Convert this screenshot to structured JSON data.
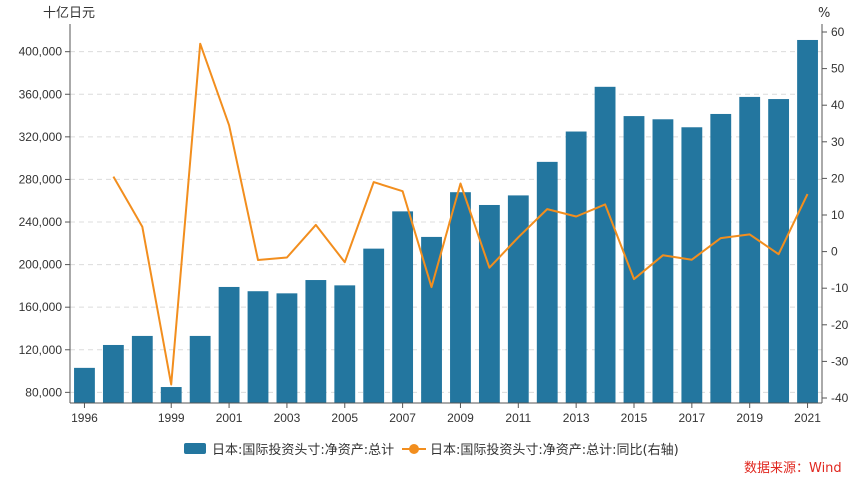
{
  "chart_data": {
    "type": "bar",
    "units": {
      "left": "十亿日元",
      "right": "%"
    },
    "categories": [
      "1996",
      "1997",
      "1998",
      "1999",
      "2000",
      "2001",
      "2002",
      "2003",
      "2004",
      "2005",
      "2006",
      "2007",
      "2008",
      "2009",
      "2010",
      "2011",
      "2012",
      "2013",
      "2014",
      "2015",
      "2016",
      "2017",
      "2018",
      "2019",
      "2020",
      "2021"
    ],
    "x_tick_labels": [
      "1996",
      "1999",
      "2001",
      "2003",
      "2005",
      "2007",
      "2009",
      "2011",
      "2013",
      "2015",
      "2017",
      "2019",
      "2021"
    ],
    "series": [
      {
        "name": "日本:国际投资头寸:净资产:总计",
        "type": "bar",
        "axis": "left",
        "color": "#23769f",
        "values": [
          103000,
          124500,
          133000,
          85000,
          133000,
          179000,
          175000,
          173000,
          185500,
          180500,
          215000,
          250000,
          226000,
          268000,
          256000,
          265000,
          296500,
          325000,
          367000,
          339500,
          336500,
          329000,
          341500,
          357500,
          355500,
          411000
        ]
      },
      {
        "name": "日本:国际投资头寸:净资产:总计:同比(右轴)",
        "type": "line",
        "axis": "right",
        "color": "#f28e1e",
        "values": [
          null,
          20.5,
          6.8,
          -36.3,
          56.8,
          34.5,
          -2.3,
          -1.6,
          7.3,
          -2.9,
          19.0,
          16.5,
          -9.7,
          18.6,
          -4.4,
          3.9,
          11.6,
          9.6,
          12.9,
          -7.5,
          -1.0,
          -2.2,
          3.7,
          4.7,
          -0.7,
          15.7
        ]
      }
    ],
    "y_left": {
      "ticks": [
        80000,
        120000,
        160000,
        200000,
        240000,
        280000,
        320000,
        360000,
        400000
      ],
      "tick_labels": [
        "80,000",
        "120,000",
        "160,000",
        "200,000",
        "240,000",
        "280,000",
        "320,000",
        "360,000",
        "400,000"
      ],
      "range": [
        70000,
        426000
      ]
    },
    "y_right": {
      "ticks": [
        -40,
        -30,
        -20,
        -10,
        0,
        10,
        20,
        30,
        40,
        50,
        60
      ],
      "range": [
        -40,
        60
      ]
    },
    "grid": "horizontal dashed",
    "legend_position": "bottom",
    "source": "数据来源：Wind"
  }
}
